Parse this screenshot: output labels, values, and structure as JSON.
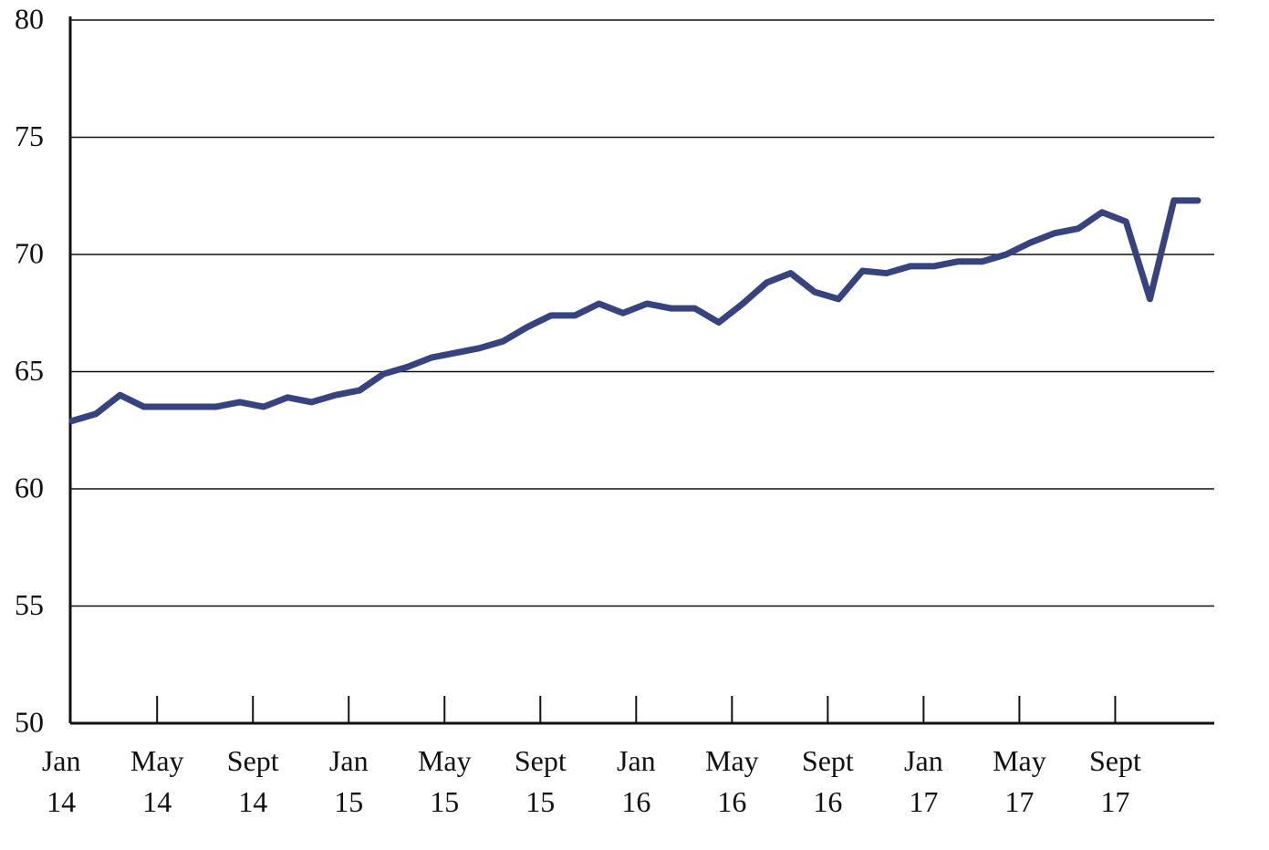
{
  "chart_data": {
    "type": "line",
    "categories": [
      "Jan 14",
      null,
      null,
      null,
      "May 14",
      null,
      null,
      null,
      "Sept 14",
      null,
      null,
      null,
      "Jan 15",
      null,
      null,
      null,
      "May 15",
      null,
      null,
      null,
      "Sept 15",
      null,
      null,
      null,
      "Jan 16",
      null,
      null,
      null,
      "May 16",
      null,
      null,
      null,
      "Sept 16",
      null,
      null,
      null,
      "Jan 17",
      null,
      null,
      null,
      "May 17",
      null,
      null,
      null,
      "Sept 17",
      null,
      null,
      null
    ],
    "series": [
      {
        "color": "#36437f",
        "values": [
          62.9,
          63.2,
          64.0,
          63.5,
          63.5,
          63.5,
          63.5,
          63.7,
          63.5,
          63.9,
          63.7,
          64.0,
          64.2,
          64.9,
          65.2,
          65.6,
          65.8,
          66.0,
          66.3,
          66.9,
          67.4,
          67.4,
          67.9,
          67.5,
          67.9,
          67.7,
          67.7,
          67.1,
          67.9,
          68.8,
          69.2,
          68.4,
          68.1,
          69.3,
          69.2,
          69.5,
          69.5,
          69.7,
          69.7,
          70.0,
          70.5,
          70.9,
          71.1,
          71.8,
          71.4,
          68.1,
          72.3,
          72.3
        ]
      }
    ],
    "ylim": [
      50,
      80
    ],
    "yticks": [
      50,
      55,
      60,
      65,
      70,
      75,
      80
    ],
    "grid": true
  }
}
